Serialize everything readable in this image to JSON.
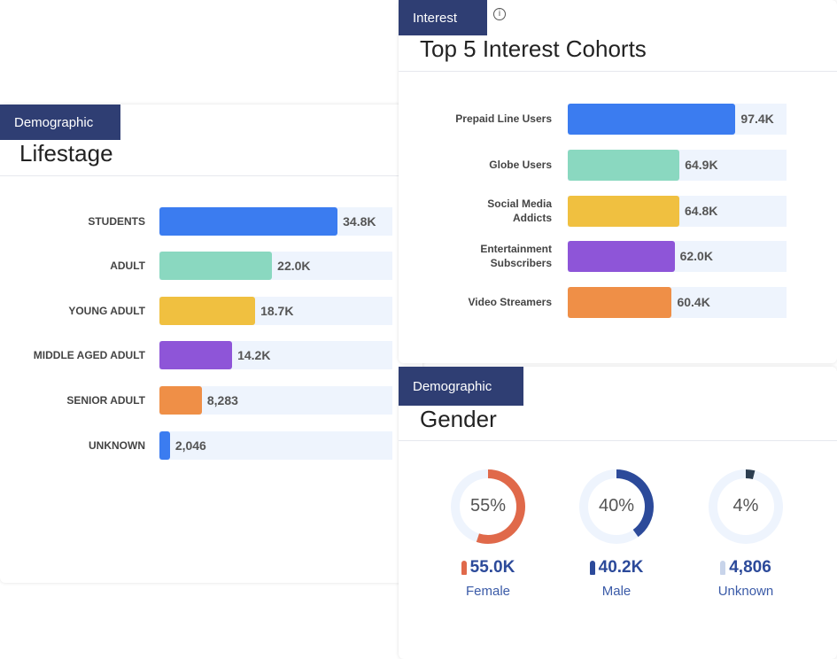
{
  "chart_data": [
    {
      "type": "bar",
      "tag": "Demographic",
      "title": "Lifestage",
      "categories": [
        "STUDENTS",
        "ADULT",
        "YOUNG ADULT",
        "MIDDLE AGED ADULT",
        "SENIOR ADULT",
        "UNKNOWN"
      ],
      "values": [
        34800,
        22000,
        18700,
        14200,
        8283,
        2046
      ],
      "value_labels": [
        "34.8K",
        "22.0K",
        "18.7K",
        "14.2K",
        "8,283",
        "2,046"
      ],
      "colors": [
        "#3b7cf0",
        "#8ad8c0",
        "#f0c040",
        "#8e55d8",
        "#ef8f47",
        "#3b7cf0"
      ],
      "xlim": [
        0,
        45500
      ]
    },
    {
      "type": "bar",
      "tag": "Interest",
      "title": "Top 5 Interest Cohorts",
      "categories": [
        "Prepaid Line Users",
        "Globe Users",
        "Social Media Addicts",
        "Entertainment Subscribers",
        "Video Streamers"
      ],
      "values": [
        97400,
        64900,
        64800,
        62000,
        60400
      ],
      "value_labels": [
        "97.4K",
        "64.9K",
        "64.8K",
        "62.0K",
        "60.4K"
      ],
      "colors": [
        "#3b7cf0",
        "#8ad8c0",
        "#f0c040",
        "#8e55d8",
        "#ef8f47"
      ],
      "xlim": [
        0,
        127000
      ]
    },
    {
      "type": "donut",
      "tag": "Demographic",
      "title": "Gender",
      "categories": [
        "Female",
        "Male",
        "Unknown"
      ],
      "values": [
        55,
        40,
        4
      ],
      "value_labels": [
        "55%",
        "40%",
        "4%"
      ],
      "counts": [
        55000,
        40200,
        4806
      ],
      "count_labels": [
        "55.0K",
        "40.2K",
        "4,806"
      ],
      "colors": [
        "#e0694a",
        "#2c4a9a",
        "#2c3e50"
      ],
      "ylim": [
        0,
        100
      ]
    }
  ]
}
